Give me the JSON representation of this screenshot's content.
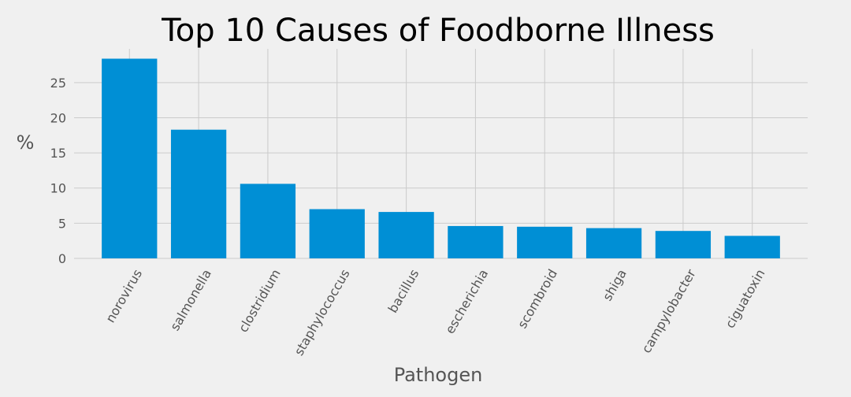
{
  "chart_data": {
    "type": "bar",
    "title": "Top 10 Causes of Foodborne Illness",
    "xlabel": "Pathogen",
    "ylabel": "%",
    "categories": [
      "norovirus",
      "salmonella",
      "clostridium",
      "staphylococcus",
      "bacillus",
      "escherichia",
      "scombroid",
      "shiga",
      "campylobacter",
      "ciguatoxin"
    ],
    "values": [
      28.4,
      18.3,
      10.6,
      7.0,
      6.6,
      4.6,
      4.5,
      4.3,
      3.9,
      3.2
    ],
    "ylim": [
      0,
      29.8
    ],
    "yticks": [
      0,
      5,
      10,
      15,
      20,
      25
    ],
    "grid": true,
    "legend": "none",
    "colors": {
      "bar": "#008fd5",
      "background": "#f0f0f0",
      "grid": "#cbcbcb"
    }
  }
}
